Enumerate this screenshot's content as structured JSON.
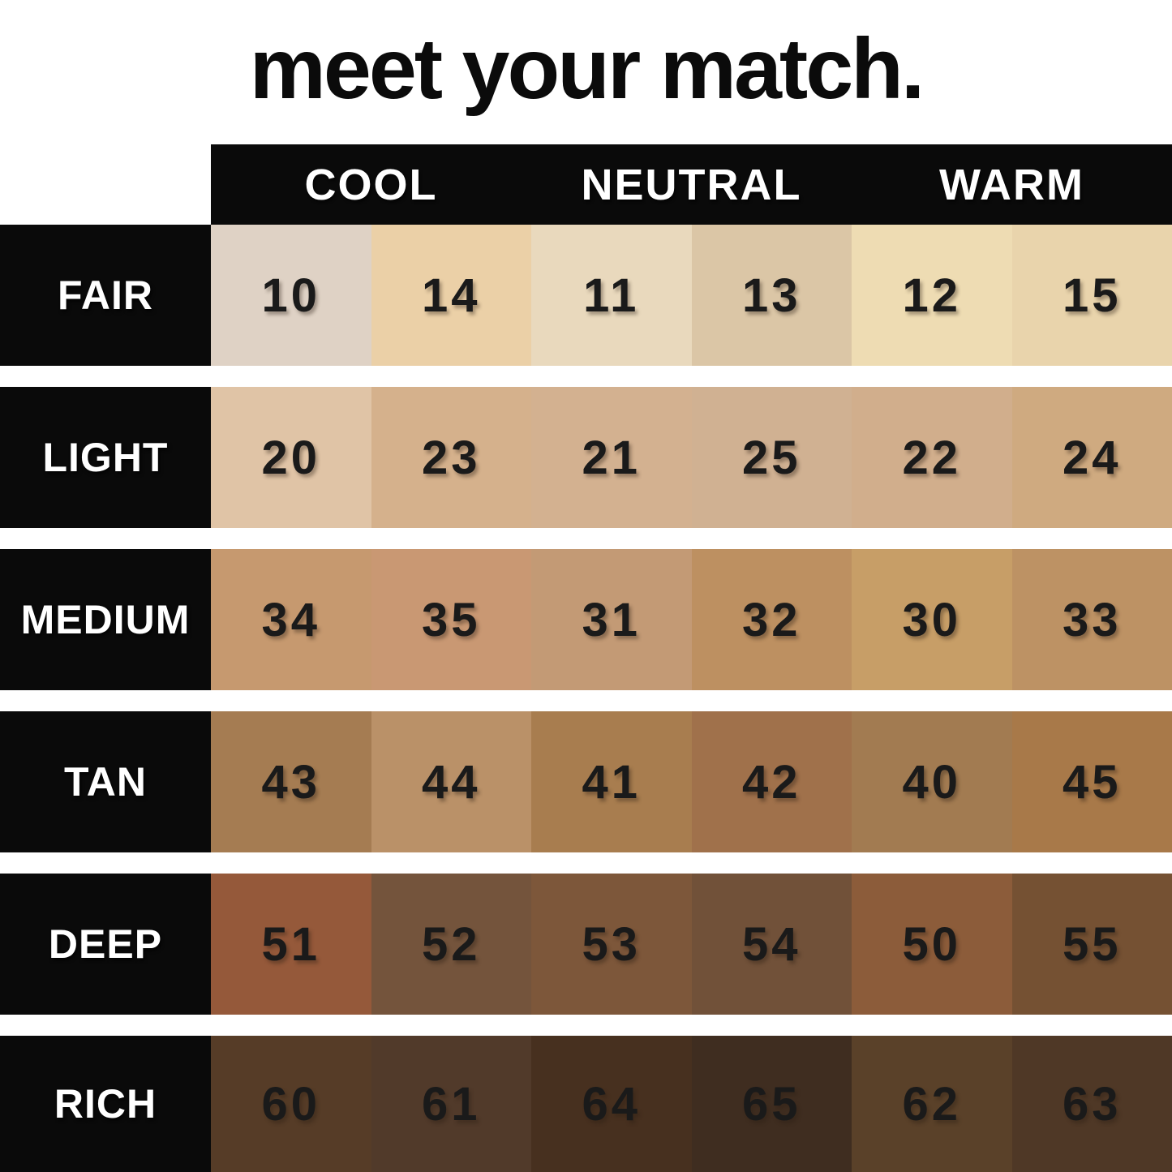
{
  "title": "meet your match.",
  "colors": {
    "bar_black": "#0a0a0a",
    "label_text": "#ffffff",
    "number_text": "#1a1a1a",
    "page_bg": "#ffffff"
  },
  "chart_data": {
    "type": "table",
    "title": "meet your match.",
    "undertone_columns": [
      "COOL",
      "NEUTRAL",
      "WARM"
    ],
    "depth_rows": [
      "FAIR",
      "LIGHT",
      "MEDIUM",
      "TAN",
      "DEEP",
      "RICH"
    ],
    "layout_hint": "each undertone column spans two swatch columns; row labels on black; white gaps between rows",
    "rows": [
      {
        "label": "FAIR",
        "shades": [
          {
            "num": "10",
            "hex": "#dfd2c5"
          },
          {
            "num": "14",
            "hex": "#ebd0a7"
          },
          {
            "num": "11",
            "hex": "#e9d9bd"
          },
          {
            "num": "13",
            "hex": "#dbc6a6"
          },
          {
            "num": "12",
            "hex": "#eedcb3"
          },
          {
            "num": "15",
            "hex": "#e9d4ac"
          }
        ]
      },
      {
        "label": "LIGHT",
        "shades": [
          {
            "num": "20",
            "hex": "#e0c4a6"
          },
          {
            "num": "23",
            "hex": "#d5b18c"
          },
          {
            "num": "21",
            "hex": "#d3b190"
          },
          {
            "num": "25",
            "hex": "#d0b192"
          },
          {
            "num": "22",
            "hex": "#d1ae8c"
          },
          {
            "num": "24",
            "hex": "#cfaa80"
          }
        ]
      },
      {
        "label": "MEDIUM",
        "shades": [
          {
            "num": "34",
            "hex": "#c6996f"
          },
          {
            "num": "35",
            "hex": "#c99873"
          },
          {
            "num": "31",
            "hex": "#c39a75"
          },
          {
            "num": "32",
            "hex": "#bd9061"
          },
          {
            "num": "30",
            "hex": "#c79e67"
          },
          {
            "num": "33",
            "hex": "#bd9264"
          }
        ]
      },
      {
        "label": "TAN",
        "shades": [
          {
            "num": "43",
            "hex": "#a57c52"
          },
          {
            "num": "44",
            "hex": "#ba9168"
          },
          {
            "num": "41",
            "hex": "#a87d4f"
          },
          {
            "num": "42",
            "hex": "#a0714b"
          },
          {
            "num": "40",
            "hex": "#a27b51"
          },
          {
            "num": "45",
            "hex": "#a87949"
          }
        ]
      },
      {
        "label": "DEEP",
        "shades": [
          {
            "num": "51",
            "hex": "#95593a"
          },
          {
            "num": "52",
            "hex": "#74543c"
          },
          {
            "num": "53",
            "hex": "#7d573a"
          },
          {
            "num": "54",
            "hex": "#715139"
          },
          {
            "num": "50",
            "hex": "#8c5c3a"
          },
          {
            "num": "55",
            "hex": "#755133"
          }
        ]
      },
      {
        "label": "RICH",
        "shades": [
          {
            "num": "60",
            "hex": "#563c27"
          },
          {
            "num": "61",
            "hex": "#513a2a"
          },
          {
            "num": "64",
            "hex": "#47301f"
          },
          {
            "num": "65",
            "hex": "#3f2d20"
          },
          {
            "num": "62",
            "hex": "#5a4129"
          },
          {
            "num": "63",
            "hex": "#4f3826"
          }
        ]
      }
    ]
  }
}
